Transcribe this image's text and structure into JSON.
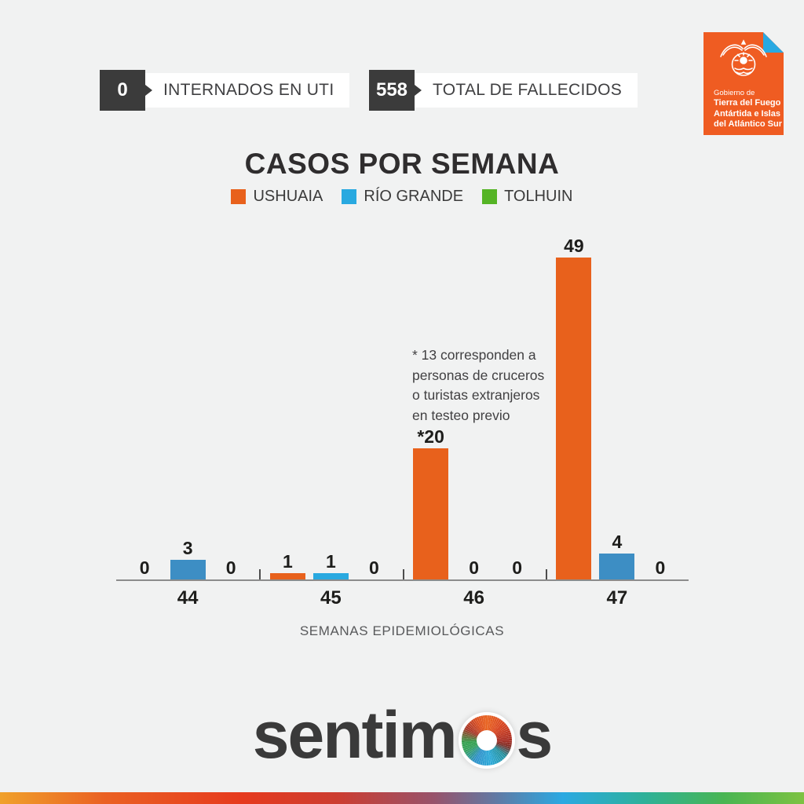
{
  "badges": [
    {
      "value": "0",
      "label": "INTERNADOS EN UTI"
    },
    {
      "value": "558",
      "label": "TOTAL DE FALLECIDOS"
    }
  ],
  "gov_logo": {
    "line1": "Gobierno de",
    "line2": "Tierra del Fuego",
    "line3": "Antártida e Islas",
    "line4": "del Atlántico Sur",
    "bg_color": "#EF5C22",
    "fold_color": "#29A9E2"
  },
  "chart_data": {
    "type": "bar",
    "title": "CASOS POR SEMANA",
    "xlabel": "SEMANAS EPIDEMIOLÓGICAS",
    "ylabel": "",
    "categories": [
      "44",
      "45",
      "46",
      "47"
    ],
    "series": [
      {
        "name": "USHUAIA",
        "color": "#E8611C",
        "values": [
          0,
          1,
          20,
          49
        ],
        "labels": [
          "0",
          "1",
          "*20",
          "49"
        ]
      },
      {
        "name": "RÍO GRANDE",
        "color": "#29A9E0",
        "values": [
          3,
          1,
          0,
          4
        ],
        "labels": [
          "3",
          "1",
          "0",
          "4"
        ],
        "point_colors": [
          "#3D8EC4",
          "#29A9E0",
          "#3D8EC4",
          "#3D8EC4"
        ]
      },
      {
        "name": "TOLHUIN",
        "color": "#55B425",
        "values": [
          0,
          0,
          0,
          0
        ],
        "labels": [
          "0",
          "0",
          "0",
          "0"
        ]
      }
    ],
    "annotation": "* 13 corresponden a\npersonas de cruceros\no turistas extranjeros\nen testeo previo",
    "ylim": [
      0,
      49
    ],
    "grid": false,
    "legend_position": "top"
  },
  "footer": {
    "brand_pre": "sentim",
    "brand_post": "s"
  },
  "colors": {
    "background": "#F1F2F2",
    "badge_dark": "#3B3B3B",
    "axis": "#8C8C8C",
    "text_dark": "#2F2D2E",
    "text_gray": "#58595B"
  }
}
